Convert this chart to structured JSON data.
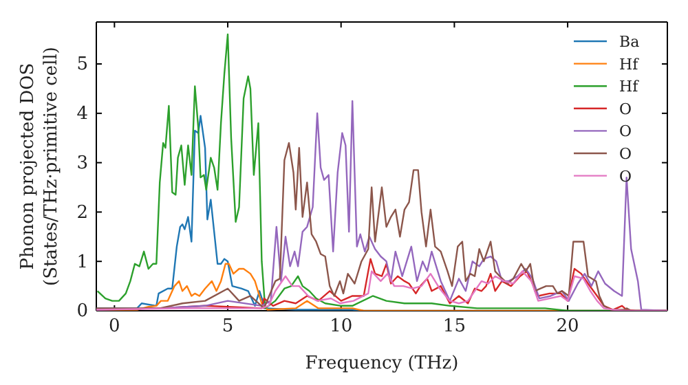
{
  "chart_data": {
    "type": "line",
    "xlabel": "Frequency (THz)",
    "ylabel": "Phonon projected DOS\n(States/THz·primitive cell)",
    "xlim": [
      -0.8,
      24.4
    ],
    "ylim": [
      0,
      5.85
    ],
    "xticks": [
      0,
      5,
      10,
      15,
      20
    ],
    "yticks": [
      0,
      1,
      2,
      3,
      4,
      5
    ],
    "grid": false,
    "legend": "top right",
    "line_style": "solid",
    "marker": "none",
    "series": [
      {
        "name": "Ba",
        "color": "#1f77b4",
        "x": [
          -0.8,
          0,
          1,
          1.2,
          1.85,
          1.95,
          2.35,
          2.55,
          2.75,
          2.9,
          3.0,
          3.1,
          3.25,
          3.4,
          3.55,
          3.7,
          3.8,
          4.0,
          4.1,
          4.25,
          4.4,
          4.55,
          4.7,
          4.85,
          5.0,
          5.2,
          5.6,
          5.9,
          6.2,
          6.4,
          6.65,
          8,
          10.5,
          11,
          24.4
        ],
        "values": [
          0.05,
          0.05,
          0.05,
          0.15,
          0.1,
          0.35,
          0.45,
          0.45,
          1.3,
          1.7,
          1.75,
          1.65,
          1.9,
          1.4,
          3.65,
          3.6,
          3.95,
          3.3,
          1.85,
          2.25,
          1.6,
          0.95,
          0.95,
          1.05,
          1.0,
          0.5,
          0.45,
          0.4,
          0.1,
          0.4,
          0.05,
          0.02,
          0.02,
          0,
          0
        ]
      },
      {
        "name": "Hf",
        "color": "#ff7f0e",
        "x": [
          -0.8,
          1,
          1.5,
          1.85,
          2.05,
          2.35,
          2.65,
          2.85,
          3.0,
          3.2,
          3.4,
          3.55,
          3.75,
          4.0,
          4.3,
          4.5,
          4.7,
          4.9,
          5.05,
          5.25,
          5.5,
          5.7,
          6.0,
          6.2,
          6.5,
          6.75,
          8.0,
          8.5,
          9.0,
          10.5,
          11,
          24.4
        ],
        "values": [
          0.02,
          0.02,
          0.08,
          0.1,
          0.2,
          0.2,
          0.5,
          0.6,
          0.4,
          0.5,
          0.3,
          0.35,
          0.3,
          0.45,
          0.6,
          0.4,
          0.6,
          0.95,
          0.95,
          0.75,
          0.85,
          0.85,
          0.75,
          0.6,
          0.15,
          0.02,
          0.05,
          0.2,
          0.05,
          0.05,
          0,
          0
        ]
      },
      {
        "name": "Hf",
        "color": "#2ca02c",
        "x": [
          -0.75,
          -0.4,
          -0.1,
          0.2,
          0.5,
          0.7,
          0.9,
          1.1,
          1.3,
          1.5,
          1.7,
          1.85,
          2.0,
          2.15,
          2.25,
          2.4,
          2.55,
          2.7,
          2.8,
          2.95,
          3.1,
          3.25,
          3.4,
          3.55,
          3.7,
          3.8,
          3.95,
          4.05,
          4.25,
          4.4,
          4.55,
          4.7,
          4.85,
          5.0,
          5.15,
          5.35,
          5.5,
          5.7,
          5.9,
          6.0,
          6.15,
          6.35,
          6.5,
          6.65,
          7.1,
          7.5,
          7.8,
          8.1,
          8.3,
          8.6,
          8.9,
          9.3,
          10,
          10.5,
          11.4,
          12,
          12.8,
          14,
          14.8,
          16,
          19,
          20,
          24.4
        ],
        "values": [
          0.4,
          0.25,
          0.2,
          0.2,
          0.35,
          0.6,
          0.95,
          0.9,
          1.2,
          0.85,
          0.95,
          0.95,
          2.6,
          3.4,
          3.3,
          4.15,
          2.4,
          2.35,
          3.1,
          3.35,
          2.55,
          3.35,
          2.75,
          4.55,
          3.7,
          2.7,
          2.75,
          2.45,
          3.1,
          2.9,
          2.45,
          3.8,
          4.8,
          5.6,
          3.5,
          1.8,
          2.1,
          4.3,
          4.75,
          4.5,
          2.75,
          3.8,
          1.0,
          0.05,
          0.2,
          0.45,
          0.5,
          0.7,
          0.5,
          0.4,
          0.25,
          0.15,
          0.1,
          0.1,
          0.3,
          0.2,
          0.15,
          0.15,
          0.1,
          0.05,
          0.05,
          0,
          0
        ]
      },
      {
        "name": "O",
        "color": "#d62728",
        "x": [
          -0.8,
          2,
          4,
          6.5,
          6.6,
          7.0,
          7.5,
          8.0,
          8.5,
          9.0,
          9.5,
          10.0,
          10.5,
          11.0,
          11.3,
          11.5,
          11.8,
          12.0,
          12.2,
          12.5,
          12.8,
          13.0,
          13.3,
          13.5,
          13.8,
          14.0,
          14.4,
          14.8,
          15.2,
          15.6,
          15.9,
          16.2,
          16.4,
          16.6,
          16.8,
          17.1,
          17.5,
          17.9,
          18.2,
          18.4,
          18.7,
          19.2,
          19.7,
          20.0,
          20.3,
          20.6,
          20.9,
          21.3,
          21.6,
          22.0,
          22.4,
          22.6,
          23.0,
          24.4
        ],
        "values": [
          0.02,
          0.05,
          0.1,
          0.05,
          0.25,
          0.1,
          0.2,
          0.15,
          0.3,
          0.2,
          0.4,
          0.2,
          0.3,
          0.3,
          1.05,
          0.75,
          0.7,
          0.95,
          0.55,
          0.7,
          0.6,
          0.55,
          0.35,
          0.5,
          0.65,
          0.4,
          0.5,
          0.15,
          0.3,
          0.15,
          0.45,
          0.4,
          0.5,
          0.75,
          0.4,
          0.6,
          0.5,
          0.7,
          0.8,
          0.6,
          0.3,
          0.35,
          0.35,
          0.2,
          0.85,
          0.75,
          0.55,
          0.3,
          0.1,
          0.02,
          0.1,
          0.02,
          0,
          0
        ]
      },
      {
        "name": "O",
        "color": "#9467bd",
        "x": [
          -0.8,
          2,
          4,
          5,
          6.5,
          6.9,
          7.15,
          7.35,
          7.55,
          7.75,
          7.95,
          8.1,
          8.3,
          8.5,
          8.75,
          8.95,
          9.1,
          9.25,
          9.45,
          9.65,
          9.85,
          10.05,
          10.2,
          10.35,
          10.5,
          10.7,
          10.85,
          11.05,
          11.25,
          11.5,
          11.75,
          12.0,
          12.2,
          12.4,
          12.7,
          12.9,
          13.1,
          13.35,
          13.6,
          13.8,
          14.0,
          14.4,
          14.8,
          15.2,
          15.5,
          15.8,
          16.1,
          16.3,
          16.6,
          16.85,
          17.1,
          17.4,
          17.8,
          18.15,
          18.45,
          18.75,
          19.25,
          19.75,
          20.05,
          20.45,
          20.75,
          21.05,
          21.35,
          21.65,
          22.05,
          22.4,
          22.6,
          22.8,
          23.1,
          23.25,
          24.4
        ],
        "values": [
          0.02,
          0.05,
          0.1,
          0.2,
          0.1,
          0.2,
          1.7,
          0.6,
          1.5,
          0.9,
          1.2,
          0.9,
          1.6,
          1.7,
          2.1,
          4.0,
          2.9,
          2.65,
          2.75,
          1.2,
          2.8,
          3.6,
          3.35,
          1.6,
          4.25,
          1.3,
          1.55,
          1.2,
          1.5,
          1.25,
          1.1,
          1.0,
          0.6,
          1.2,
          0.7,
          1.0,
          1.3,
          0.6,
          1.0,
          0.8,
          1.2,
          0.6,
          0.2,
          0.65,
          0.4,
          1.0,
          0.9,
          1.05,
          1.1,
          1.0,
          0.6,
          0.6,
          0.7,
          0.85,
          0.65,
          0.25,
          0.3,
          0.4,
          0.2,
          0.55,
          0.75,
          0.5,
          0.8,
          0.55,
          0.4,
          0.3,
          2.7,
          1.25,
          0.6,
          0.02,
          0
        ]
      },
      {
        "name": "O",
        "color": "#8c564b",
        "x": [
          -0.8,
          2,
          3,
          4,
          5,
          5.5,
          6.0,
          6.6,
          7.1,
          7.3,
          7.5,
          7.7,
          7.9,
          8.0,
          8.15,
          8.3,
          8.5,
          8.7,
          8.9,
          9.1,
          9.3,
          9.5,
          9.7,
          9.95,
          10.1,
          10.3,
          10.6,
          10.9,
          11.2,
          11.35,
          11.5,
          11.8,
          12.0,
          12.2,
          12.4,
          12.6,
          12.8,
          13.0,
          13.2,
          13.4,
          13.55,
          13.75,
          13.95,
          14.15,
          14.4,
          14.7,
          14.9,
          15.15,
          15.35,
          15.5,
          15.7,
          15.9,
          16.1,
          16.3,
          16.6,
          16.8,
          17.0,
          17.35,
          17.6,
          17.95,
          18.15,
          18.35,
          18.55,
          18.8,
          19.05,
          19.35,
          19.55,
          19.75,
          20.05,
          20.25,
          20.7,
          20.9,
          21.25,
          21.4,
          21.6,
          21.9,
          22.5,
          22.6,
          22.8,
          24.4
        ],
        "values": [
          0.05,
          0.05,
          0.15,
          0.2,
          0.45,
          0.2,
          0.3,
          0.05,
          0.6,
          0.65,
          3.05,
          3.4,
          2.8,
          2.05,
          3.3,
          1.9,
          2.6,
          1.55,
          1.4,
          1.15,
          1.1,
          0.5,
          0.3,
          0.6,
          0.35,
          0.75,
          0.55,
          1.0,
          1.25,
          2.5,
          1.4,
          2.5,
          1.7,
          1.9,
          2.05,
          1.5,
          2.05,
          2.2,
          2.85,
          2.85,
          2.0,
          1.3,
          2.05,
          1.3,
          1.2,
          0.8,
          0.5,
          1.3,
          1.4,
          0.6,
          0.75,
          0.7,
          1.25,
          1.0,
          1.4,
          0.8,
          0.7,
          0.55,
          0.65,
          0.95,
          0.8,
          0.95,
          0.4,
          0.45,
          0.5,
          0.5,
          0.35,
          0.4,
          0.3,
          1.4,
          1.4,
          0.7,
          0.6,
          0.3,
          0.1,
          0.02,
          0.02,
          0.05,
          0,
          0
        ]
      },
      {
        "name": "O",
        "color": "#e377c2",
        "x": [
          -0.8,
          3,
          6.5,
          6.8,
          7.1,
          7.55,
          7.85,
          8.15,
          8.55,
          8.95,
          9.55,
          9.95,
          10.55,
          11.2,
          11.35,
          11.75,
          12.05,
          12.35,
          12.75,
          13.15,
          13.55,
          13.95,
          14.35,
          14.8,
          15.2,
          15.6,
          15.9,
          16.2,
          16.5,
          16.8,
          17.2,
          17.6,
          18.0,
          18.4,
          18.7,
          19.2,
          19.7,
          20.0,
          20.3,
          20.7,
          21.0,
          21.3,
          21.6,
          22.0,
          22.5,
          24.4
        ],
        "values": [
          0.02,
          0.05,
          0.05,
          0.1,
          0.4,
          0.7,
          0.5,
          0.5,
          0.3,
          0.2,
          0.25,
          0.15,
          0.2,
          0.35,
          0.8,
          0.6,
          0.75,
          0.5,
          0.5,
          0.45,
          0.5,
          0.75,
          0.45,
          0.2,
          0.15,
          0.2,
          0.4,
          0.6,
          0.55,
          0.7,
          0.6,
          0.55,
          0.8,
          0.6,
          0.2,
          0.25,
          0.3,
          0.2,
          0.7,
          0.65,
          0.4,
          0.2,
          0.05,
          0.02,
          0,
          0
        ]
      }
    ]
  }
}
